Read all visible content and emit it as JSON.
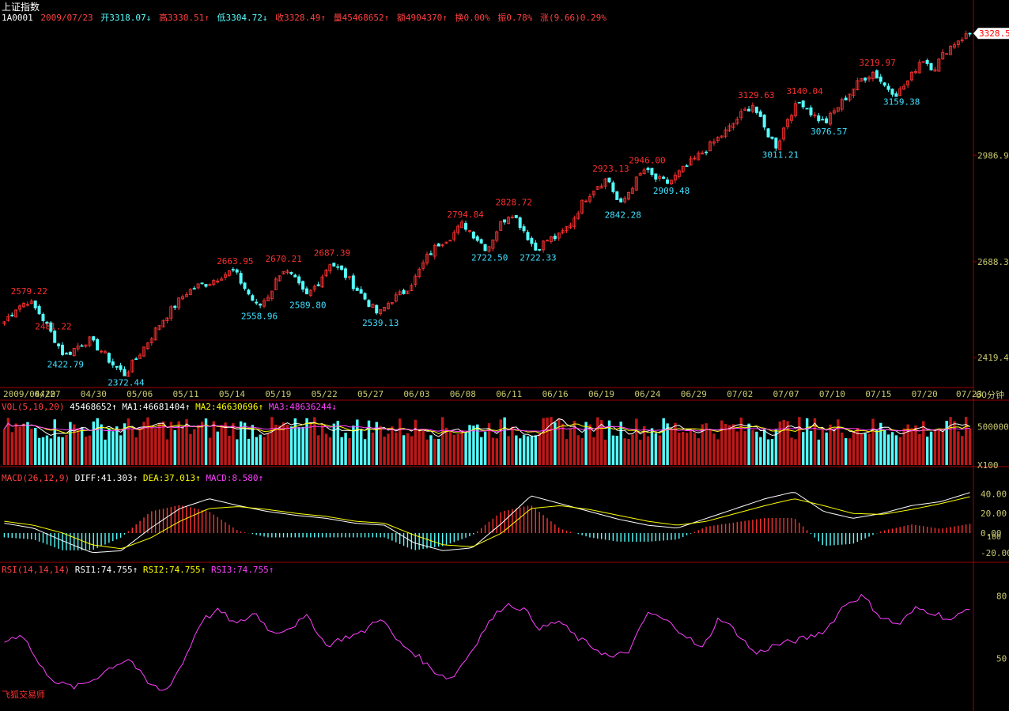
{
  "header": {
    "title": "上证指数",
    "code": "1A0001",
    "date": "2009/07/23",
    "open": "开3318.07↓",
    "high": "高3330.51↑",
    "low": "低3304.72↓",
    "close": "收3328.49↑",
    "volume": "量45468652↑",
    "amount": "额4904370↑",
    "turnover": "换0.00%",
    "amplitude": "振0.78%",
    "change": "涨(9.66)0.29%",
    "last_price_tag": "3328.5"
  },
  "period_label": "60分钟",
  "brand": "飞狐交易师",
  "colors": {
    "up": "#ff3232",
    "down": "#54ffff",
    "axis": "#a00000",
    "tick_text": "#c8c870",
    "peak_label": "#ff3030",
    "trough_label": "#40e0ff",
    "macd_diff": "#ffffff",
    "macd_dea": "#ffff00",
    "rsi": "#ff40ff",
    "vol_ma1": "#ffffff",
    "vol_ma2": "#ffff00",
    "vol_ma3": "#ff40ff"
  },
  "indicators": {
    "vol": {
      "name": "VOL(5,10,20)",
      "value": "45468652↑",
      "ma1": "MA1:46681404↑",
      "ma2": "MA2:46630696↑",
      "ma3": "MA3:48636244↓",
      "tick": "500000",
      "unit": "X100"
    },
    "macd": {
      "name": "MACD(26,12,9)",
      "diff": "DIFF:41.303↑",
      "dea": "DEA:37.013↑",
      "macd": "MACD:8.580↑",
      "ticks": [
        "40.00",
        "20.00",
        "0.00",
        "-20.00"
      ],
      "extra_tick": "100"
    },
    "rsi": {
      "name": "RSI(14,14,14)",
      "rsi1": "RSI1:74.755↑",
      "rsi2": "RSI2:74.755↑",
      "rsi3": "RSI3:74.755↑",
      "ticks": [
        "80",
        "50"
      ]
    }
  },
  "chart_data": {
    "type": "candlestick",
    "x_tick_labels": [
      "2009/04/20",
      "04/27",
      "04/30",
      "05/06",
      "05/11",
      "05/14",
      "05/19",
      "05/22",
      "05/27",
      "06/03",
      "06/08",
      "06/11",
      "06/16",
      "06/19",
      "06/24",
      "06/29",
      "07/02",
      "07/07",
      "07/10",
      "07/15",
      "07/20",
      "07/23"
    ],
    "y_ticks": [
      2419.4,
      2688.3,
      2986.9
    ],
    "ylim": [
      2340,
      3360
    ],
    "annotations": [
      {
        "label": "2579.22",
        "value": 2579.22,
        "kind": "peak",
        "date": "04/21"
      },
      {
        "label": "2481.22",
        "value": 2481.22,
        "kind": "peak",
        "date": "04/22"
      },
      {
        "label": "2422.79",
        "value": 2422.79,
        "kind": "trough",
        "date": "04/22"
      },
      {
        "label": "2372.44",
        "value": 2372.44,
        "kind": "trough",
        "date": "04/27"
      },
      {
        "label": "2663.95",
        "value": 2663.95,
        "kind": "peak",
        "date": "05/08"
      },
      {
        "label": "2558.96",
        "value": 2558.96,
        "kind": "trough",
        "date": "05/11"
      },
      {
        "label": "2670.21",
        "value": 2670.21,
        "kind": "peak",
        "date": "05/12"
      },
      {
        "label": "2589.80",
        "value": 2589.8,
        "kind": "trough",
        "date": "05/14"
      },
      {
        "label": "2687.39",
        "value": 2687.39,
        "kind": "peak",
        "date": "05/18"
      },
      {
        "label": "2539.13",
        "value": 2539.13,
        "kind": "trough",
        "date": "05/22"
      },
      {
        "label": "2794.84",
        "value": 2794.84,
        "kind": "peak",
        "date": "06/05"
      },
      {
        "label": "2722.50",
        "value": 2722.5,
        "kind": "trough",
        "date": "06/08"
      },
      {
        "label": "2828.72",
        "value": 2828.72,
        "kind": "peak",
        "date": "06/10"
      },
      {
        "label": "2722.33",
        "value": 2722.33,
        "kind": "trough",
        "date": "06/12"
      },
      {
        "label": "2923.13",
        "value": 2923.13,
        "kind": "peak",
        "date": "06/19"
      },
      {
        "label": "2842.28",
        "value": 2842.28,
        "kind": "trough",
        "date": "06/19"
      },
      {
        "label": "2946.00",
        "value": 2946.0,
        "kind": "peak",
        "date": "06/23"
      },
      {
        "label": "2909.48",
        "value": 2909.48,
        "kind": "trough",
        "date": "06/24"
      },
      {
        "label": "3129.63",
        "value": 3129.63,
        "kind": "peak",
        "date": "07/06"
      },
      {
        "label": "3011.21",
        "value": 3011.21,
        "kind": "trough",
        "date": "07/07"
      },
      {
        "label": "3140.04",
        "value": 3140.04,
        "kind": "peak",
        "date": "07/09"
      },
      {
        "label": "3076.57",
        "value": 3076.57,
        "kind": "trough",
        "date": "07/10"
      },
      {
        "label": "3219.97",
        "value": 3219.97,
        "kind": "peak",
        "date": "07/15"
      },
      {
        "label": "3159.38",
        "value": 3159.38,
        "kind": "trough",
        "date": "07/16"
      }
    ],
    "close_path": [
      2520,
      2560,
      2579,
      2540,
      2481,
      2423,
      2450,
      2470,
      2440,
      2400,
      2372,
      2420,
      2470,
      2520,
      2560,
      2600,
      2620,
      2630,
      2650,
      2664,
      2610,
      2559,
      2600,
      2670,
      2640,
      2590,
      2630,
      2687,
      2660,
      2620,
      2580,
      2539,
      2580,
      2600,
      2640,
      2700,
      2740,
      2760,
      2795,
      2760,
      2723,
      2790,
      2829,
      2780,
      2722,
      2750,
      2760,
      2800,
      2860,
      2900,
      2923,
      2842,
      2900,
      2946,
      2920,
      2909,
      2940,
      2970,
      3000,
      3030,
      3060,
      3100,
      3130,
      3060,
      3011,
      3100,
      3140,
      3100,
      3077,
      3120,
      3160,
      3200,
      3220,
      3180,
      3159,
      3200,
      3260,
      3230,
      3280,
      3310,
      3328
    ],
    "volume": {
      "ylim": [
        0,
        700000
      ],
      "tick": 500000,
      "unit": "X100"
    },
    "macd": {
      "ylim": [
        -25,
        50
      ],
      "ticks": [
        40,
        20,
        0,
        -20
      ],
      "diff": [
        10,
        5,
        -8,
        -20,
        -18,
        5,
        25,
        35,
        28,
        22,
        18,
        15,
        10,
        8,
        -10,
        -18,
        -15,
        10,
        38,
        30,
        22,
        14,
        8,
        5,
        15,
        25,
        35,
        42,
        22,
        15,
        20,
        28,
        32,
        41.3
      ],
      "dea": [
        12,
        8,
        0,
        -12,
        -16,
        -5,
        12,
        25,
        27,
        24,
        20,
        17,
        12,
        10,
        -2,
        -12,
        -14,
        0,
        25,
        28,
        24,
        18,
        12,
        8,
        12,
        20,
        28,
        35,
        28,
        20,
        19,
        24,
        30,
        37.0
      ]
    },
    "rsi": {
      "ylim": [
        30,
        90
      ],
      "ticks": [
        80,
        50
      ],
      "values": [
        58,
        62,
        46,
        38,
        36,
        40,
        46,
        50,
        38,
        34,
        48,
        68,
        73,
        66,
        72,
        62,
        65,
        70,
        56,
        60,
        62,
        70,
        58,
        52,
        44,
        40,
        52,
        66,
        76,
        74,
        64,
        68,
        60,
        55,
        50,
        54,
        72,
        68,
        62,
        54,
        70,
        62,
        52,
        56,
        58,
        60,
        64,
        76,
        80,
        70,
        66,
        74,
        72,
        68,
        74.755
      ]
    }
  }
}
